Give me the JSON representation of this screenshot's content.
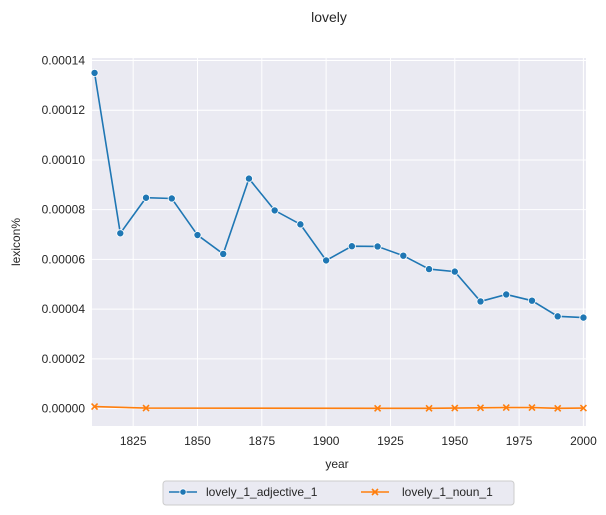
{
  "chart_data": {
    "type": "line",
    "title": "lovely",
    "xlabel": "year",
    "ylabel": "lexicon%",
    "xlim": [
      1809,
      2001
    ],
    "ylim": [
      -7e-06,
      0.000141
    ],
    "xticks": [
      1825,
      1850,
      1875,
      1900,
      1925,
      1950,
      1975,
      2000
    ],
    "yticks": [
      0,
      2e-05,
      4e-05,
      6e-05,
      8e-05,
      0.0001,
      0.00012,
      0.00014
    ],
    "xtick_labels": [
      "1825",
      "1850",
      "1875",
      "1900",
      "1925",
      "1950",
      "1975",
      "2000"
    ],
    "ytick_labels": [
      "0.00000",
      "0.00002",
      "0.00004",
      "0.00006",
      "0.00008",
      "0.00010",
      "0.00012",
      "0.00014"
    ],
    "grid": true,
    "legend_position": "below",
    "series": [
      {
        "name": "lovely_1_adjective_1",
        "color": "#1f77b4",
        "marker": "circle",
        "x": [
          1810,
          1820,
          1830,
          1840,
          1850,
          1860,
          1870,
          1880,
          1890,
          1900,
          1910,
          1920,
          1930,
          1940,
          1950,
          1960,
          1970,
          1980,
          1990,
          2000
        ],
        "y": [
          0.000135,
          7.05e-05,
          8.48e-05,
          8.45e-05,
          6.98e-05,
          6.22e-05,
          9.25e-05,
          7.97e-05,
          7.41e-05,
          5.96e-05,
          6.53e-05,
          6.52e-05,
          6.15e-05,
          5.61e-05,
          5.51e-05,
          4.31e-05,
          4.59e-05,
          4.34e-05,
          3.71e-05,
          3.66e-05
        ]
      },
      {
        "name": "lovely_1_noun_1",
        "color": "#ff7f0e",
        "marker": "x",
        "x": [
          1810,
          1830,
          1920,
          1940,
          1950,
          1960,
          1970,
          1980,
          1990,
          2000
        ],
        "y": [
          8e-07,
          2e-07,
          1e-07,
          1e-07,
          2e-07,
          3e-07,
          4e-07,
          4e-07,
          1e-07,
          2e-07
        ]
      }
    ]
  },
  "colors": {
    "plot_background": "#eaeaf2",
    "grid": "#ffffff"
  }
}
